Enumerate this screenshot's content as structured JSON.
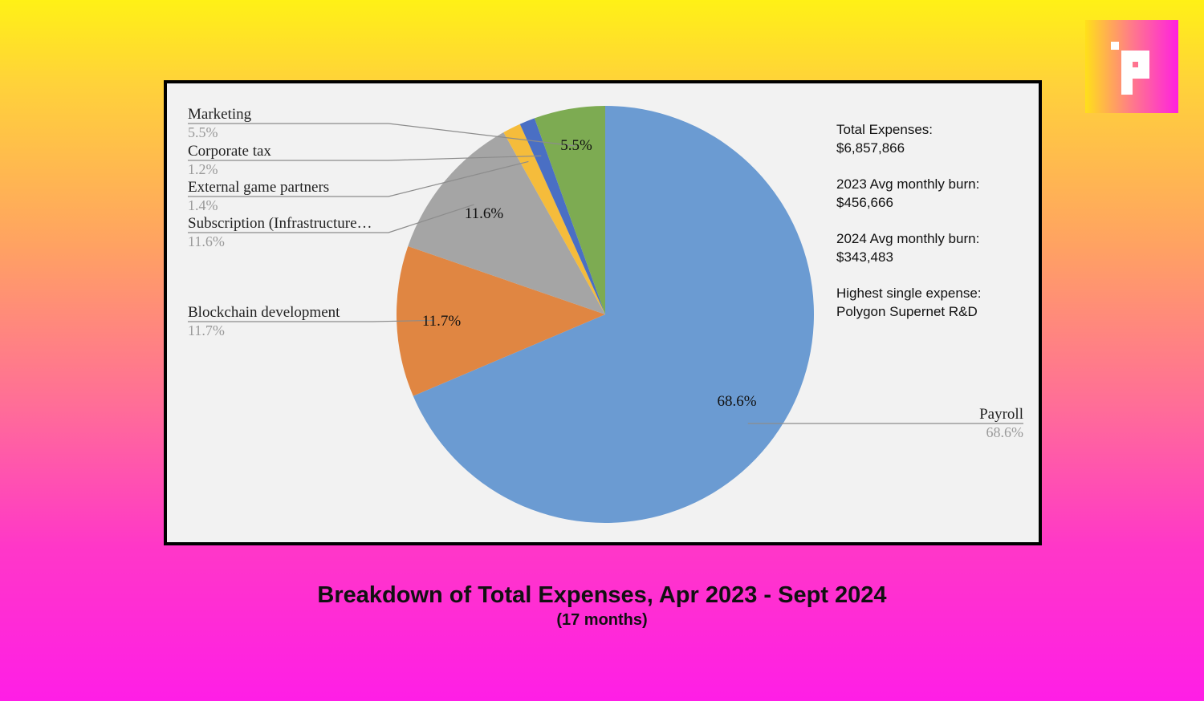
{
  "chart_data": {
    "type": "pie",
    "slices": [
      {
        "label": "Payroll",
        "value": 68.6,
        "value_label": "68.6%",
        "color": "#6b9bd2"
      },
      {
        "label": "Blockchain development",
        "value": 11.7,
        "value_label": "11.7%",
        "color": "#e08642"
      },
      {
        "label": "Subscription (Infrastructure…",
        "value": 11.6,
        "value_label": "11.6%",
        "color": "#a5a5a5"
      },
      {
        "label": "External game partners",
        "value": 1.4,
        "value_label": "1.4%",
        "color": "#f5bc3b"
      },
      {
        "label": "Corporate tax",
        "value": 1.2,
        "value_label": "1.2%",
        "color": "#4a6fc4"
      },
      {
        "label": "Marketing",
        "value": 5.5,
        "value_label": "5.5%",
        "color": "#7dab52"
      }
    ],
    "start_angle": "12 o'clock",
    "direction": "clockwise",
    "title": "Breakdown of Total Expenses, Apr 2023 - Sept 2024",
    "subtitle": "(17 months)"
  },
  "stats": [
    {
      "label": "Total Expenses:",
      "value": "$6,857,866"
    },
    {
      "label": "2023 Avg monthly burn:",
      "value": "$456,666"
    },
    {
      "label": "2024 Avg monthly burn:",
      "value": "$343,483"
    },
    {
      "label": "Highest single expense:",
      "value": "Polygon Supernet R&D"
    }
  ],
  "logo": {
    "icon": "p-logo-icon",
    "colors": [
      "#ffe01a",
      "#ff20e0"
    ]
  }
}
